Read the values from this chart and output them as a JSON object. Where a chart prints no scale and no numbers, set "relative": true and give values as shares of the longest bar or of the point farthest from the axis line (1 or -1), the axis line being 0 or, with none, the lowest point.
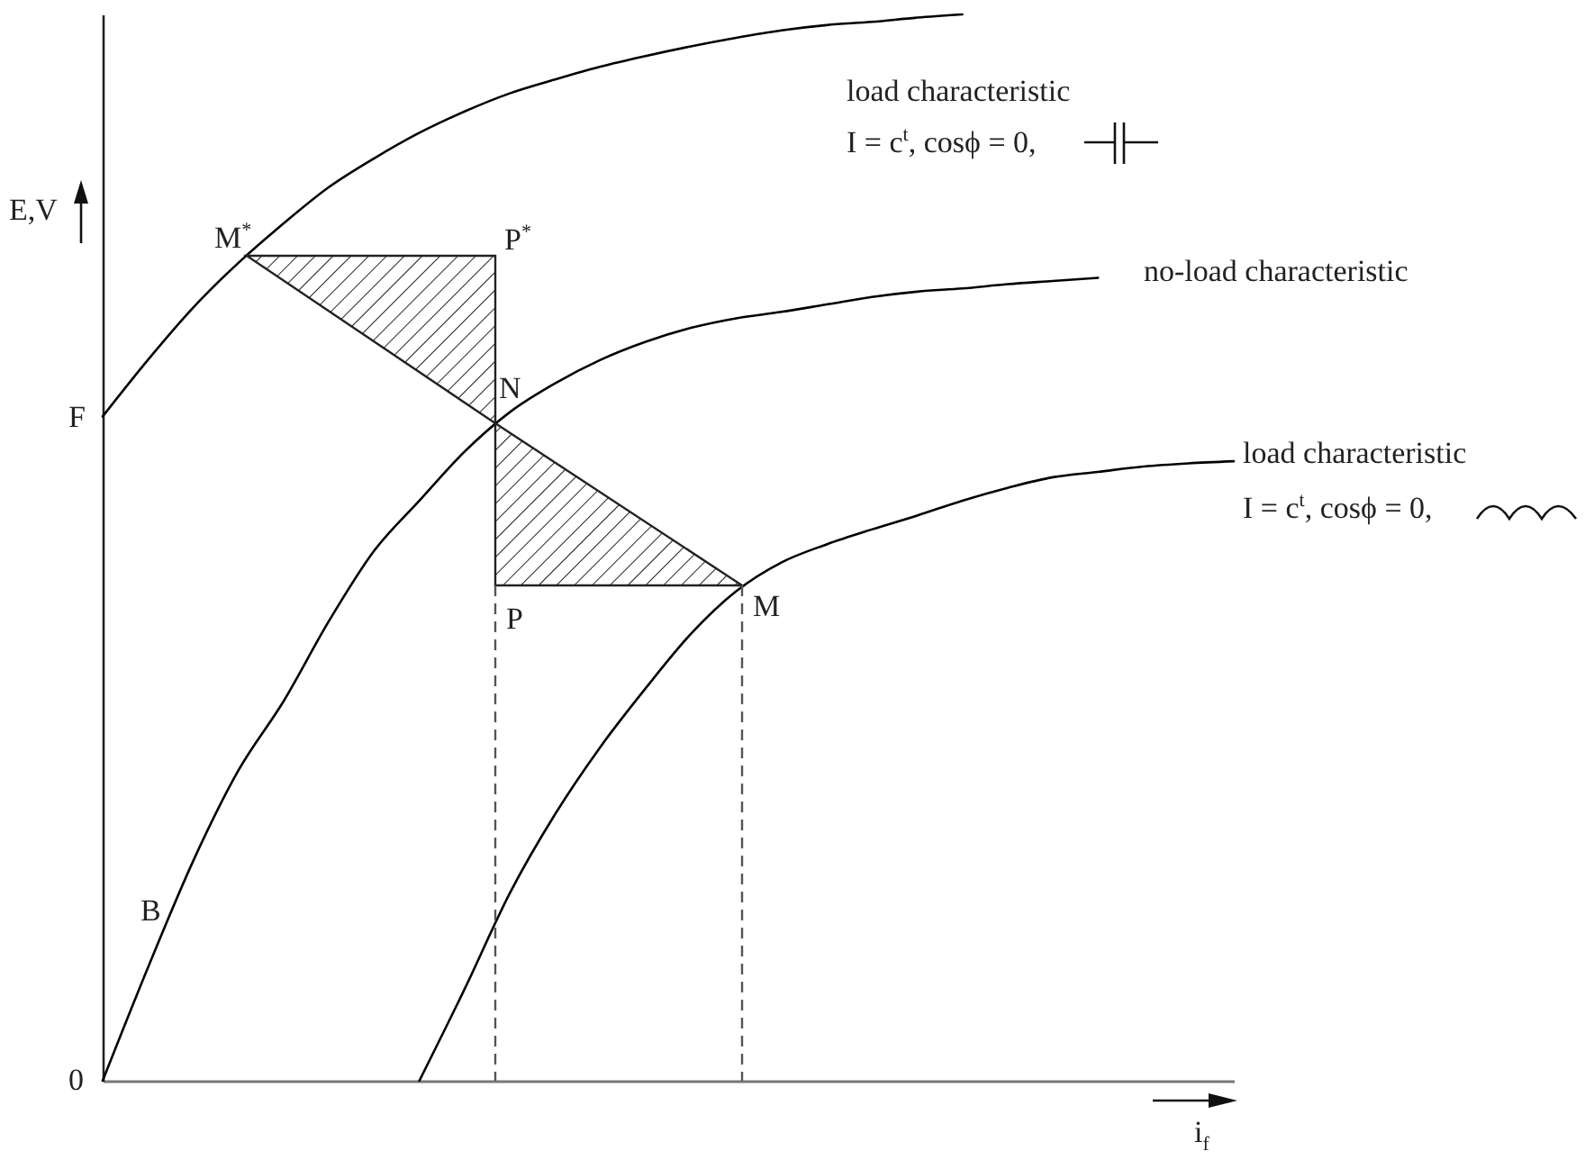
{
  "chart_data": {
    "type": "line",
    "relative": true,
    "xlabel": "i$_{f}$",
    "ylabel": "E,V",
    "categories": [
      null,
      null,
      null,
      null,
      null,
      null,
      null,
      null,
      null,
      null,
      null,
      null,
      null,
      null,
      null,
      null,
      null,
      null,
      null,
      null,
      null,
      null,
      null,
      null,
      null,
      null
    ],
    "series": [
      {
        "name": "load characteristic",
        "color": "#000000",
        "values": [
          0.623,
          0.676,
          0.725,
          0.767,
          0.804,
          0.838,
          0.865,
          0.889,
          0.909,
          0.926,
          0.939,
          0.951,
          0.961,
          0.97,
          0.978,
          0.985,
          0.99,
          0.993,
          0.997,
          1.0,
          null,
          null,
          null,
          null,
          null,
          null
        ]
      },
      {
        "name": "no-load characteristic",
        "color": "#000000",
        "values": [
          0,
          0.106,
          0.206,
          0.291,
          0.356,
          0.431,
          0.497,
          0.544,
          0.59,
          0.627,
          0.654,
          0.676,
          0.693,
          0.706,
          0.715,
          0.721,
          0.728,
          0.735,
          0.74,
          0.743,
          0.747,
          0.75,
          0.753,
          null,
          null,
          null
        ]
      },
      {
        "name": "load characteristic",
        "color": "#000000",
        "values": [
          null,
          null,
          null,
          null,
          null,
          null,
          null,
          0,
          0.086,
          0.176,
          0.25,
          0.313,
          0.368,
          0.419,
          0.459,
          0.486,
          0.503,
          0.517,
          0.53,
          0.544,
          0.556,
          0.566,
          0.571,
          0.576,
          0.579,
          0.581
        ]
      }
    ],
    "annotations": [
      "M$^{*}$",
      "P$^{*}$",
      "N",
      "P",
      "M",
      "B",
      "F",
      "0",
      "I = c$^{t}$, cosϕ = 0,",
      "I = c$^{t}$, cosϕ = 0,"
    ],
    "grid": false,
    "marker": "none",
    "line_style": "solid"
  }
}
